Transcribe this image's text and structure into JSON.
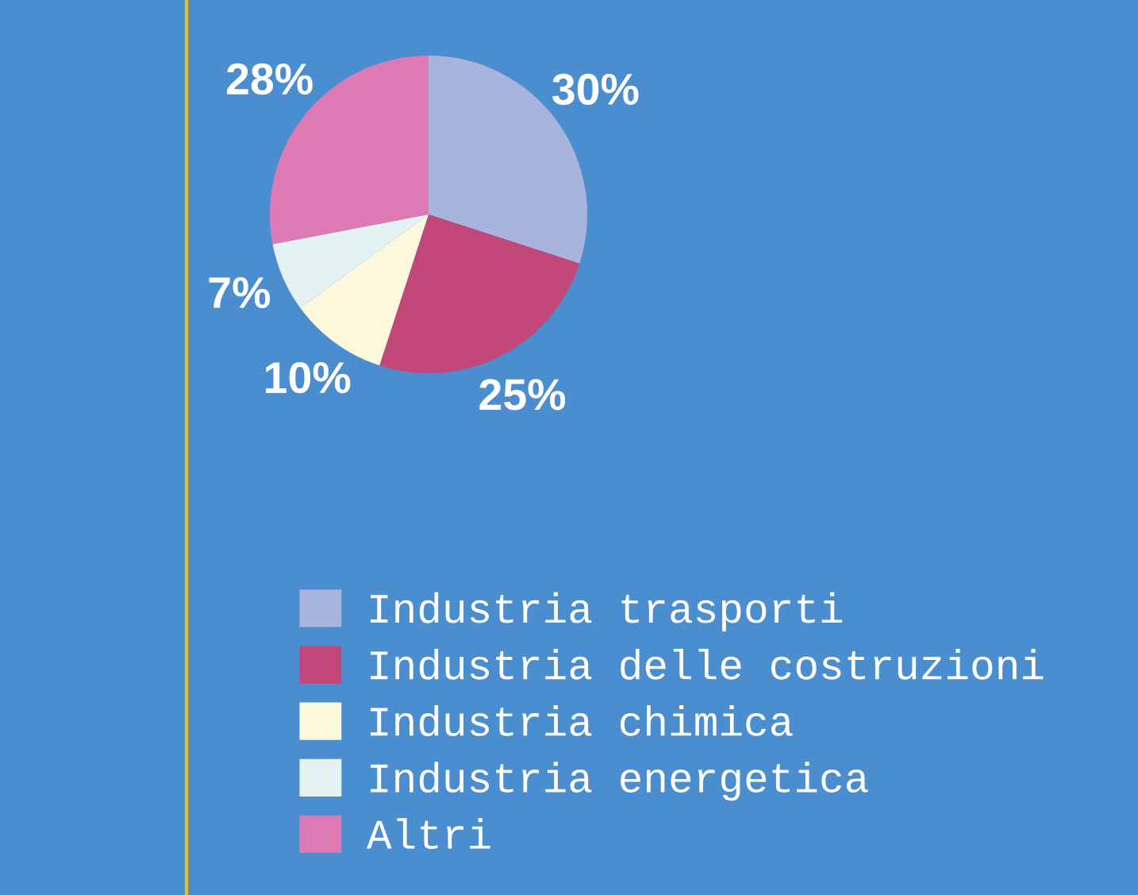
{
  "chart_data": {
    "type": "pie",
    "categories": [
      "Industria trasporti",
      "Industria delle costruzioni",
      "Industria chimica",
      "Industria energetica",
      "Altri"
    ],
    "values": [
      30,
      25,
      10,
      7,
      28
    ],
    "value_labels": [
      "30%",
      "25%",
      "10%",
      "7%",
      "28%"
    ],
    "colors": [
      "#a9b4dc",
      "#c2487a",
      "#fdf8dc",
      "#e4f2f4",
      "#dd7ab4"
    ],
    "legend": "bottom"
  }
}
